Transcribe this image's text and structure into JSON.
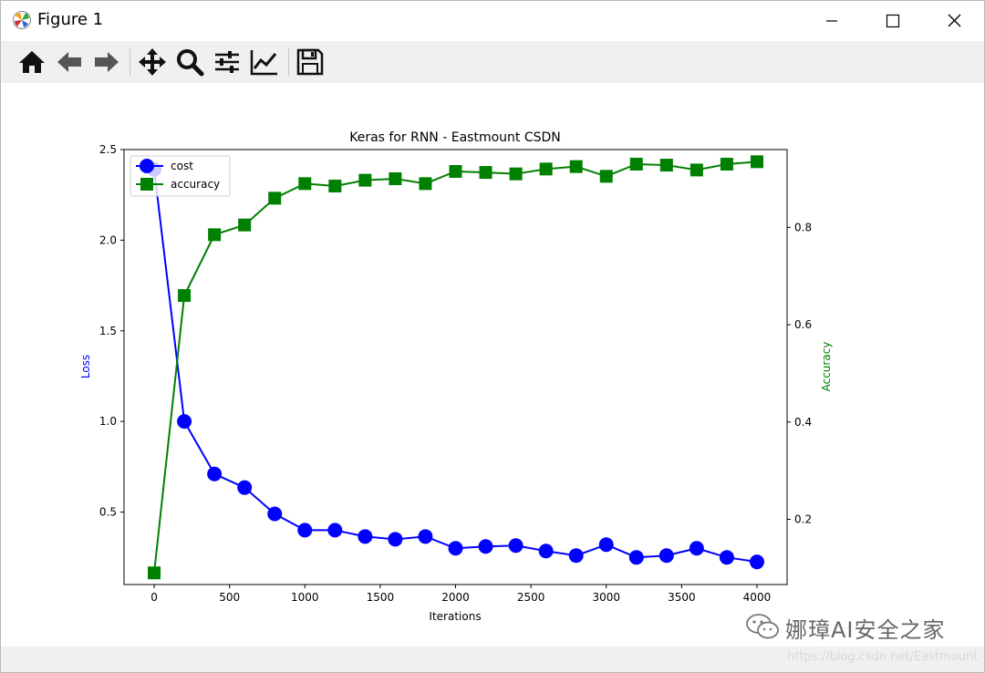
{
  "window": {
    "title": "Figure 1"
  },
  "toolbar": {
    "buttons": [
      {
        "name": "home-icon"
      },
      {
        "name": "back-arrow-icon"
      },
      {
        "name": "forward-arrow-icon"
      },
      {
        "name": "pan-icon"
      },
      {
        "name": "zoom-icon"
      },
      {
        "name": "configure-subplots-icon"
      },
      {
        "name": "edit-axis-icon"
      },
      {
        "name": "save-icon"
      }
    ]
  },
  "watermark": {
    "text": "娜璋AI安全之家",
    "url": "https://blog.csdn.net/Eastmount"
  },
  "chart_data": {
    "type": "line",
    "title": "Keras for RNN - Eastmount CSDN",
    "xlabel": "Iterations",
    "ylabel": "Loss",
    "y2label": "Accuracy",
    "x": [
      0,
      200,
      400,
      600,
      800,
      1000,
      1200,
      1400,
      1600,
      1800,
      2000,
      2200,
      2400,
      2600,
      2800,
      3000,
      3200,
      3400,
      3600,
      3800,
      4000
    ],
    "xlim": [
      -200,
      4200
    ],
    "ylim": [
      0.1,
      2.5
    ],
    "y2lim": [
      0.066,
      0.96
    ],
    "xticks": [
      0,
      500,
      1000,
      1500,
      2000,
      2500,
      3000,
      3500,
      4000
    ],
    "yticks": [
      0.5,
      1.0,
      1.5,
      2.0,
      2.5
    ],
    "y2ticks": [
      0.2,
      0.4,
      0.6,
      0.8
    ],
    "legend": "upper-left",
    "series": [
      {
        "name": "cost",
        "axis": "left",
        "color": "#0000ff",
        "marker": "circle",
        "values": [
          2.39,
          1.0,
          0.71,
          0.635,
          0.49,
          0.4,
          0.4,
          0.365,
          0.35,
          0.365,
          0.3,
          0.31,
          0.315,
          0.285,
          0.26,
          0.32,
          0.25,
          0.26,
          0.3,
          0.25,
          0.225
        ]
      },
      {
        "name": "accuracy",
        "axis": "right",
        "color": "#008000",
        "marker": "square",
        "values": [
          0.09,
          0.66,
          0.785,
          0.805,
          0.86,
          0.89,
          0.885,
          0.897,
          0.9,
          0.89,
          0.915,
          0.913,
          0.91,
          0.92,
          0.925,
          0.905,
          0.93,
          0.928,
          0.918,
          0.93,
          0.935
        ]
      }
    ]
  }
}
